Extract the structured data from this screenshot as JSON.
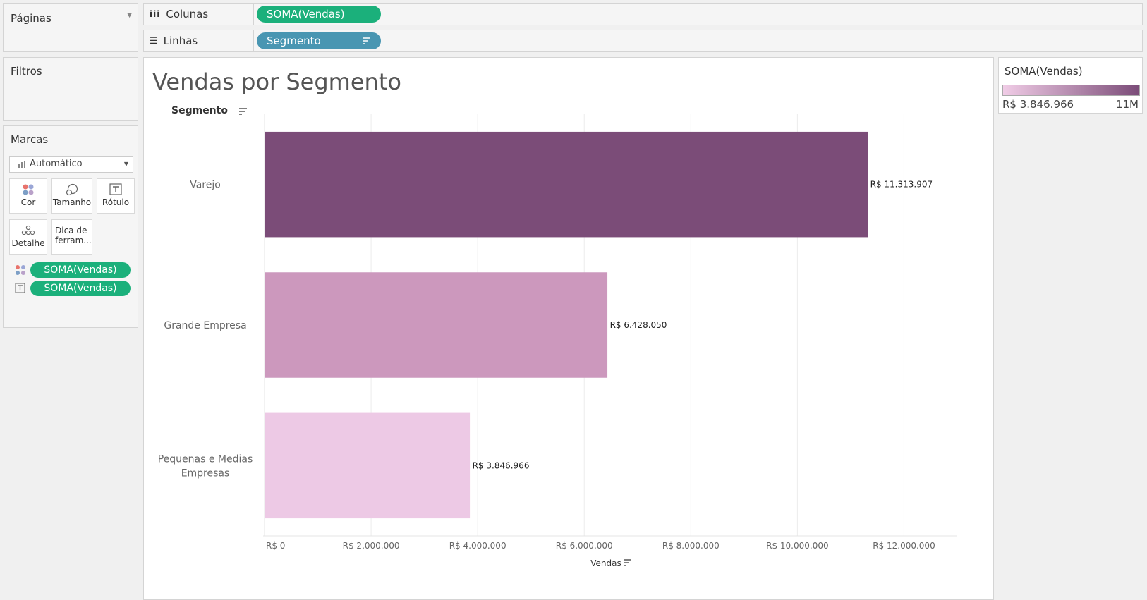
{
  "left_panels": {
    "pages_title": "Páginas",
    "filters_title": "Filtros",
    "marks_title": "Marcas",
    "mark_type": "Automático",
    "mark_cards": [
      {
        "label": "Cor",
        "icon": "color-dots-icon"
      },
      {
        "label": "Tamanho",
        "icon": "size-icon"
      },
      {
        "label": "Rótulo",
        "icon": "label-icon"
      },
      {
        "label": "Detalhe",
        "icon": "detail-icon"
      },
      {
        "label_line1": "Dica de",
        "label_line2": "ferram...",
        "icon": "tooltip-icon"
      }
    ],
    "mark_pills": [
      {
        "label": "SOMA(Vendas)",
        "icon": "color-dots-icon"
      },
      {
        "label": "SOMA(Vendas)",
        "icon": "label-icon"
      }
    ]
  },
  "shelves": {
    "columns_label": "Colunas",
    "columns_pill": "SOMA(Vendas)",
    "rows_label": "Linhas",
    "rows_pill": "Segmento"
  },
  "legend": {
    "title": "SOMA(Vendas)",
    "min_label": "R$ 3.846.966",
    "max_label": "11M",
    "color_min": "#f0cce6",
    "color_max": "#7b4c78"
  },
  "chart_data": {
    "type": "bar",
    "orientation": "horizontal",
    "title": "Vendas por Segmento",
    "row_header": "Segmento",
    "xlabel": "Vendas",
    "categories": [
      "Varejo",
      "Grande Empresa",
      "Pequenas e Medias Empresas"
    ],
    "category_lines": [
      [
        "Varejo"
      ],
      [
        "Grande Empresa"
      ],
      [
        "Pequenas e Medias",
        "Empresas"
      ]
    ],
    "values": [
      11313907,
      6428050,
      3846966
    ],
    "data_labels": [
      "R$ 11.313.907",
      "R$ 6.428.050",
      "R$ 3.846.966"
    ],
    "colors": [
      "#7b4c78",
      "#cc98bd",
      "#edc9e5"
    ],
    "xlim": [
      0,
      13000000
    ],
    "x_ticks": [
      0,
      2000000,
      4000000,
      6000000,
      8000000,
      10000000,
      12000000
    ],
    "x_tick_labels": [
      "R$ 0",
      "R$ 2.000.000",
      "R$ 4.000.000",
      "R$ 6.000.000",
      "R$ 8.000.000",
      "R$ 10.000.000",
      "R$ 12.000.000"
    ],
    "grid": true
  }
}
